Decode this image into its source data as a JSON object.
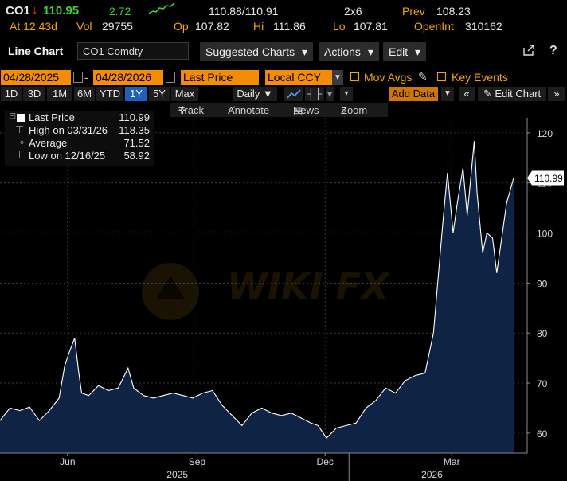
{
  "quote": {
    "ticker": "CO1",
    "arrow": "↓",
    "last": "110.95",
    "change": "2.72",
    "bid_ask": "110.88/110.91",
    "size": "2x6",
    "prev_label": "Prev",
    "prev": "108.23",
    "time_label": "At 12:43d",
    "vol_label": "Vol",
    "vol": "29755",
    "open_label": "Op",
    "open": "107.82",
    "hi_label": "Hi",
    "hi": "111.86",
    "lo_label": "Lo",
    "lo": "107.81",
    "oi_label": "OpenInt",
    "oi": "310162"
  },
  "toolbar": {
    "title": "Line Chart",
    "security": "CO1 Comdty",
    "suggested": "Suggested Charts",
    "actions": "Actions",
    "edit": "Edit",
    "caret": "▾"
  },
  "daterow": {
    "start": "04/28/2025",
    "end": "04/28/2026",
    "field": "Last Price",
    "currency": "Local CCY",
    "mov_avgs": "Mov Avgs",
    "key_events": "Key Events"
  },
  "periods": [
    "1D",
    "3D",
    "1M",
    "6M",
    "YTD",
    "1Y",
    "5Y",
    "Max"
  ],
  "active_period": "1Y",
  "periodrow": {
    "frequency": "Daily ▼",
    "add_data": "Add Data",
    "edit_chart": "Edit Chart"
  },
  "tools": {
    "track": "Track",
    "annotate": "Annotate",
    "news": "News",
    "zoom": "Zoom"
  },
  "legend": {
    "last_label": "Last Price",
    "last_value": "110.99",
    "high_label": "High on 03/31/26",
    "high_value": "118.35",
    "avg_label": "Average",
    "avg_value": "71.52",
    "low_label": "Low on 12/16/25",
    "low_value": "58.92"
  },
  "colors": {
    "accent": "#f4a40a",
    "up": "#3dd13d",
    "down": "#ff3b30",
    "area_fill": "#0f2444",
    "line": "#ffffff",
    "active_tab": "#1f5fbf"
  },
  "chart_data": {
    "type": "area",
    "y_axis_side": "right",
    "ylim": [
      56,
      123
    ],
    "yticks": [
      60,
      70,
      80,
      90,
      100,
      110,
      120
    ],
    "x_month_labels": [
      "Jun",
      "Sep",
      "Dec",
      "Mar"
    ],
    "x_year_labels": [
      "2025",
      "2026"
    ],
    "last_value_tag": "110.99",
    "grid": true,
    "series": [
      {
        "name": "Last Price",
        "x": [
          "2025-04-28",
          "2025-05-05",
          "2025-05-12",
          "2025-05-19",
          "2025-05-26",
          "2025-06-02",
          "2025-06-09",
          "2025-06-13",
          "2025-06-16",
          "2025-06-20",
          "2025-06-23",
          "2025-06-25",
          "2025-06-30",
          "2025-07-07",
          "2025-07-14",
          "2025-07-21",
          "2025-07-28",
          "2025-08-01",
          "2025-08-08",
          "2025-08-15",
          "2025-08-22",
          "2025-08-29",
          "2025-09-05",
          "2025-09-12",
          "2025-09-19",
          "2025-09-26",
          "2025-10-03",
          "2025-10-10",
          "2025-10-17",
          "2025-10-24",
          "2025-10-31",
          "2025-11-07",
          "2025-11-14",
          "2025-11-21",
          "2025-11-28",
          "2025-12-05",
          "2025-12-10",
          "2025-12-16",
          "2025-12-23",
          "2025-12-30",
          "2026-01-06",
          "2026-01-13",
          "2026-01-20",
          "2026-01-27",
          "2026-02-03",
          "2026-02-10",
          "2026-02-17",
          "2026-02-24",
          "2026-03-02",
          "2026-03-05",
          "2026-03-09",
          "2026-03-12",
          "2026-03-16",
          "2026-03-19",
          "2026-03-23",
          "2026-03-26",
          "2026-03-31",
          "2026-04-02",
          "2026-04-06",
          "2026-04-09",
          "2026-04-13",
          "2026-04-16",
          "2026-04-20",
          "2026-04-23",
          "2026-04-28"
        ],
        "values": [
          62.5,
          65.0,
          64.5,
          65.2,
          62.5,
          64.5,
          67.0,
          73.5,
          76.0,
          79.0,
          72.0,
          68.0,
          67.5,
          69.5,
          68.5,
          69.0,
          73.0,
          69.0,
          67.5,
          67.0,
          67.5,
          68.0,
          67.5,
          67.0,
          68.0,
          68.5,
          65.5,
          63.5,
          61.5,
          64.0,
          65.0,
          64.0,
          63.5,
          64.0,
          63.0,
          62.0,
          61.5,
          59.0,
          61.0,
          61.5,
          62.0,
          65.0,
          66.5,
          69.0,
          68.0,
          70.5,
          71.5,
          72.0,
          80.0,
          90.0,
          103.0,
          112.0,
          100.0,
          106.0,
          113.0,
          103.5,
          118.35,
          108.0,
          96.0,
          100.0,
          99.0,
          92.0,
          100.0,
          106.0,
          110.99
        ]
      }
    ]
  }
}
